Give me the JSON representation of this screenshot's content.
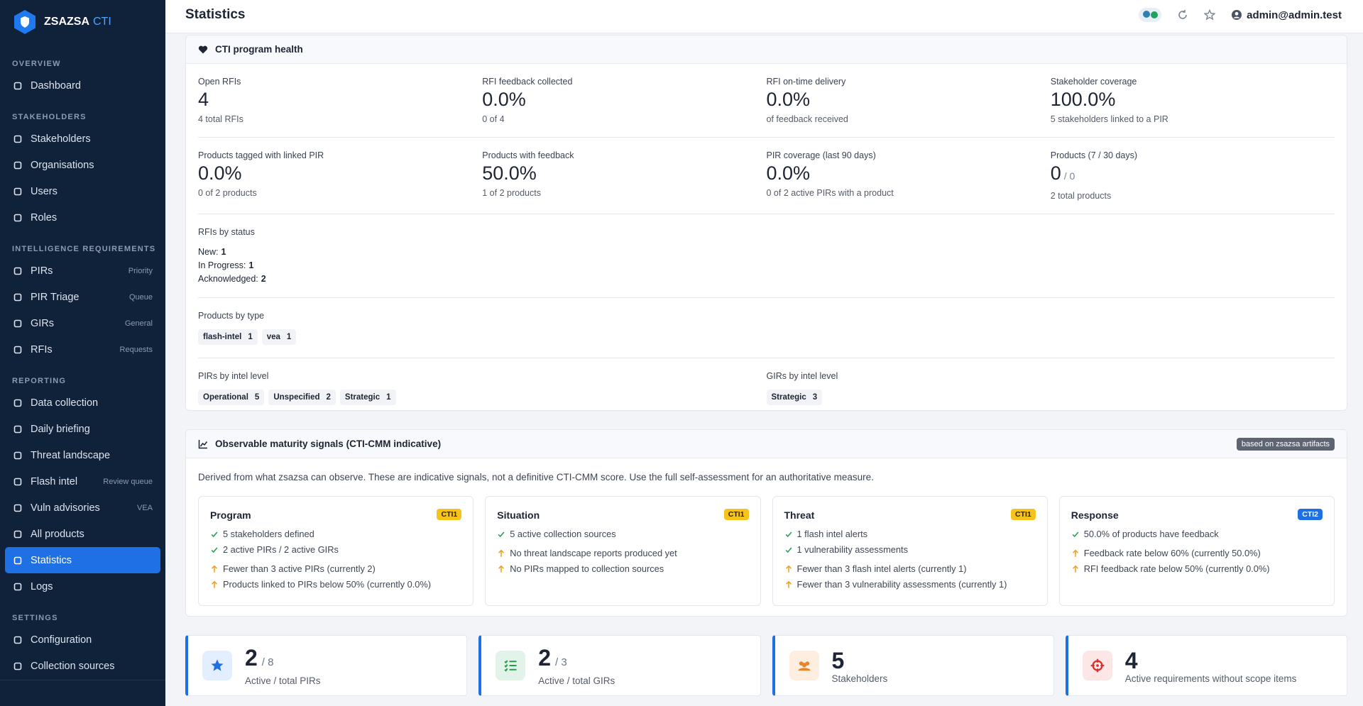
{
  "sidebar": {
    "brand": "ZSAZSA",
    "brand_suffix": "CTI",
    "sections": [
      {
        "title": "OVERVIEW",
        "items": [
          {
            "label": "Dashboard"
          }
        ]
      },
      {
        "title": "STAKEHOLDERS",
        "items": [
          {
            "label": "Stakeholders"
          },
          {
            "label": "Organisations"
          },
          {
            "label": "Users"
          },
          {
            "label": "Roles"
          }
        ]
      },
      {
        "title": "INTELLIGENCE REQUIREMENTS",
        "items": [
          {
            "label": "PIRs",
            "tag": "Priority"
          },
          {
            "label": "PIR Triage",
            "tag": "Queue"
          },
          {
            "label": "GIRs",
            "tag": "General"
          },
          {
            "label": "RFIs",
            "tag": "Requests"
          }
        ]
      },
      {
        "title": "REPORTING",
        "items": [
          {
            "label": "Data collection"
          },
          {
            "label": "Daily briefing"
          },
          {
            "label": "Threat landscape"
          },
          {
            "label": "Flash intel",
            "tag": "Review queue"
          },
          {
            "label": "Vuln advisories",
            "tag": "VEA"
          },
          {
            "label": "All products"
          },
          {
            "label": "Statistics",
            "active": true
          },
          {
            "label": "Logs"
          }
        ]
      },
      {
        "title": "SETTINGS",
        "items": [
          {
            "label": "Configuration"
          },
          {
            "label": "Collection sources"
          }
        ]
      }
    ]
  },
  "header": {
    "title": "Statistics",
    "user": "admin@admin.test"
  },
  "health": {
    "title": "CTI program health",
    "metrics": [
      {
        "label": "Open RFIs",
        "value": 4,
        "note": "4 total RFIs"
      },
      {
        "label": "RFI feedback collected",
        "value": "0.0%",
        "note": "0 of 4"
      },
      {
        "label": "RFI on-time delivery",
        "value": "0.0%",
        "note": "of feedback received"
      },
      {
        "label": "Stakeholder coverage",
        "value": "100.0%",
        "note": "5 stakeholders linked to a PIR"
      },
      {
        "label": "Products tagged with linked PIR",
        "value": "0.0%",
        "note": "0 of 2 products"
      },
      {
        "label": "Products with feedback",
        "value": "50.0%",
        "note": "1 of 2 products"
      },
      {
        "label": "PIR coverage (last 90 days)",
        "value": "0.0%",
        "note": "0 of 2 active PIRs with a product"
      },
      {
        "label": "Products (7 / 30 days)",
        "value": 0,
        "suffix": "/ 0",
        "note": "2 total products"
      }
    ],
    "rfi_status": {
      "label": "RFIs by status",
      "items": [
        {
          "label": "New:",
          "value": 1
        },
        {
          "label": "In Progress:",
          "value": 1
        },
        {
          "label": "Acknowledged:",
          "value": 2
        }
      ]
    },
    "products_by_type": {
      "label": "Products by type",
      "badges": [
        {
          "label": "flash-intel",
          "count": 1
        },
        {
          "label": "vea",
          "count": 1
        }
      ]
    },
    "pirs_by_level": {
      "label": "PIRs by intel level",
      "badges": [
        {
          "label": "Operational",
          "count": 5
        },
        {
          "label": "Unspecified",
          "count": 2
        },
        {
          "label": "Strategic",
          "count": 1
        }
      ]
    },
    "girs_by_level": {
      "label": "GIRs by intel level",
      "badges": [
        {
          "label": "Strategic",
          "count": 3
        }
      ]
    }
  },
  "maturity": {
    "title": "Observable maturity signals (CTI-CMM indicative)",
    "badge": "based on zsazsa artifacts",
    "description": "Derived from what zsazsa can observe. These are indicative signals, not a definitive CTI-CMM score. Use the full self-assessment for an authoritative measure.",
    "cards": [
      {
        "title": "Program",
        "level": "CTI1",
        "positives": [
          "5 stakeholders defined",
          "2 active PIRs / 2 active GIRs"
        ],
        "warnings": [
          "Fewer than 3 active PIRs (currently 2)",
          "Products linked to PIRs below 50% (currently 0.0%)"
        ]
      },
      {
        "title": "Situation",
        "level": "CTI1",
        "positives": [
          "5 active collection sources"
        ],
        "warnings": [
          "No threat landscape reports produced yet",
          "No PIRs mapped to collection sources"
        ]
      },
      {
        "title": "Threat",
        "level": "CTI1",
        "positives": [
          "1 flash intel alerts",
          "1 vulnerability assessments"
        ],
        "warnings": [
          "Fewer than 3 flash intel alerts (currently 1)",
          "Fewer than 3 vulnerability assessments (currently 1)"
        ]
      },
      {
        "title": "Response",
        "level": "CTI2",
        "positives": [
          "50.0% of products have feedback"
        ],
        "warnings": [
          "Feedback rate below 60% (currently 50.0%)",
          "RFI feedback rate below 50% (currently 0.0%)"
        ]
      }
    ]
  },
  "stats": [
    {
      "value": 2,
      "suffix": "/ 8",
      "label": "Active / total PIRs"
    },
    {
      "value": 2,
      "suffix": "/ 3",
      "label": "Active / total GIRs"
    },
    {
      "value": 5,
      "label": "Stakeholders"
    },
    {
      "value": 4,
      "label": "Active requirements without scope items"
    }
  ]
}
